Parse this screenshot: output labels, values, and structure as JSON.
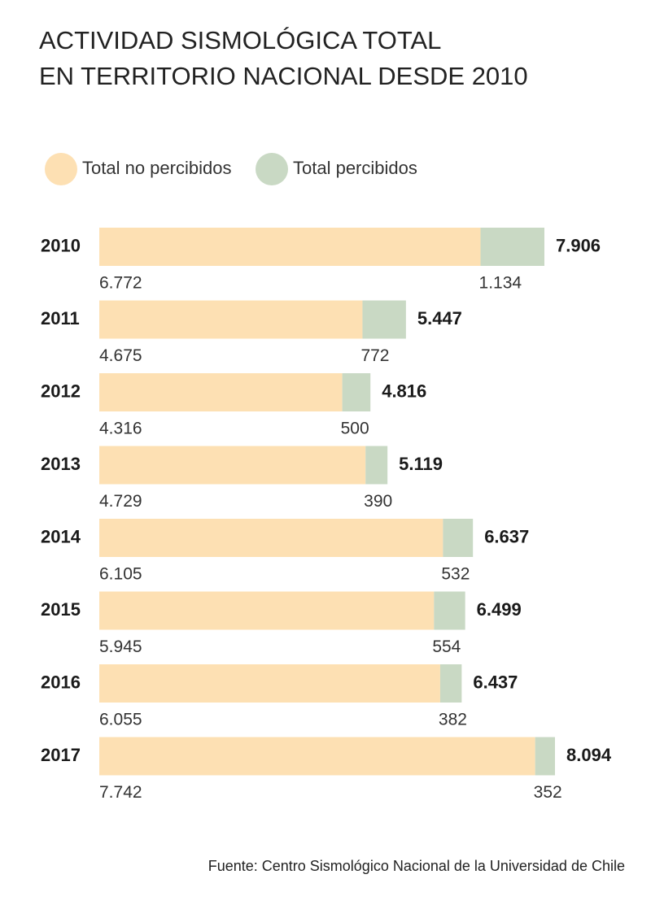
{
  "chart_data": {
    "type": "stacked-bar-horizontal",
    "title": [
      "ACTIVIDAD SISMOLÓGICA TOTAL",
      "EN TERRITORIO NACIONAL DESDE 2010"
    ],
    "categories": [
      "2010",
      "2011",
      "2012",
      "2013",
      "2014",
      "2015",
      "2016",
      "2017"
    ],
    "series": [
      {
        "name": "Total no percibidos",
        "color": "#fde0b3",
        "values": [
          6772,
          4675,
          4316,
          4729,
          6105,
          5945,
          6055,
          7742
        ],
        "value_labels": [
          "6.772",
          "4.675",
          "4.316",
          "4.729",
          "6.105",
          "5.945",
          "6.055",
          "7.742"
        ]
      },
      {
        "name": "Total percibidos",
        "color": "#c9d9c4",
        "values": [
          1134,
          772,
          500,
          390,
          532,
          554,
          382,
          352
        ],
        "value_labels": [
          "1.134",
          "772",
          "500",
          "390",
          "532",
          "554",
          "382",
          "352"
        ]
      }
    ],
    "totals": {
      "values": [
        7906,
        5447,
        4816,
        5119,
        6637,
        6499,
        6437,
        8094
      ],
      "value_labels": [
        "7.906",
        "5.447",
        "4.816",
        "5.119",
        "6.637",
        "6.499",
        "6.437",
        "8.094"
      ]
    },
    "source": "Fuente: Centro Sismológico Nacional de la Universidad de Chile"
  }
}
